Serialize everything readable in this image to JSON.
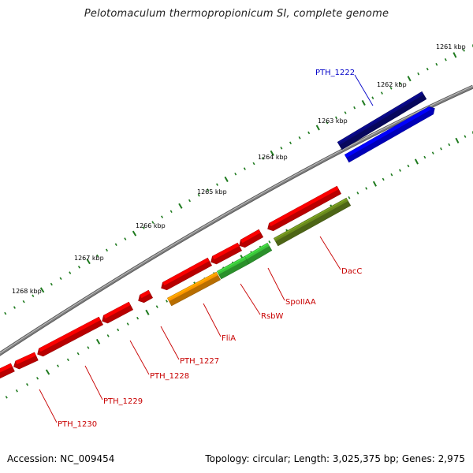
{
  "title": "Pelotomaculum thermopropionicum SI, complete genome",
  "footer": {
    "accession": "Accession: NC_009454",
    "summary": "Topology: circular; Length: 3,025,375 bp; Genes: 2,975"
  },
  "colors": {
    "backbone": "#808080",
    "tick": "#1e7a1e",
    "gene_red": "#ff0000",
    "gene_green": "#3cc83c",
    "gene_olive": "#6b8c1e",
    "gene_orange": "#ff9900",
    "gene_navy": "#0a0a80",
    "gene_blue": "#0000ff",
    "label_red": "#c80000",
    "label_blue": "#0000c8"
  },
  "scale_labels": [
    "1261 kbp",
    "1262 kbp",
    "1263 kbp",
    "1264 kbp",
    "1265 kbp",
    "1266 kbp",
    "1267 kbp",
    "1268 kbp"
  ],
  "gene_labels": [
    {
      "id": "pth1222",
      "text": "PTH_1222",
      "color": "label_blue"
    },
    {
      "id": "dacc",
      "text": "DacC",
      "color": "label_red"
    },
    {
      "id": "spoiiaa",
      "text": "SpoIIAA",
      "color": "label_red"
    },
    {
      "id": "rsbw",
      "text": "RsbW",
      "color": "label_red"
    },
    {
      "id": "flia",
      "text": "FliA",
      "color": "label_red"
    },
    {
      "id": "pth1227",
      "text": "PTH_1227",
      "color": "label_red"
    },
    {
      "id": "pth1228",
      "text": "PTH_1228",
      "color": "label_red"
    },
    {
      "id": "pth1229",
      "text": "PTH_1229",
      "color": "label_red"
    },
    {
      "id": "pth1230",
      "text": "PTH_1230",
      "color": "label_red"
    }
  ]
}
